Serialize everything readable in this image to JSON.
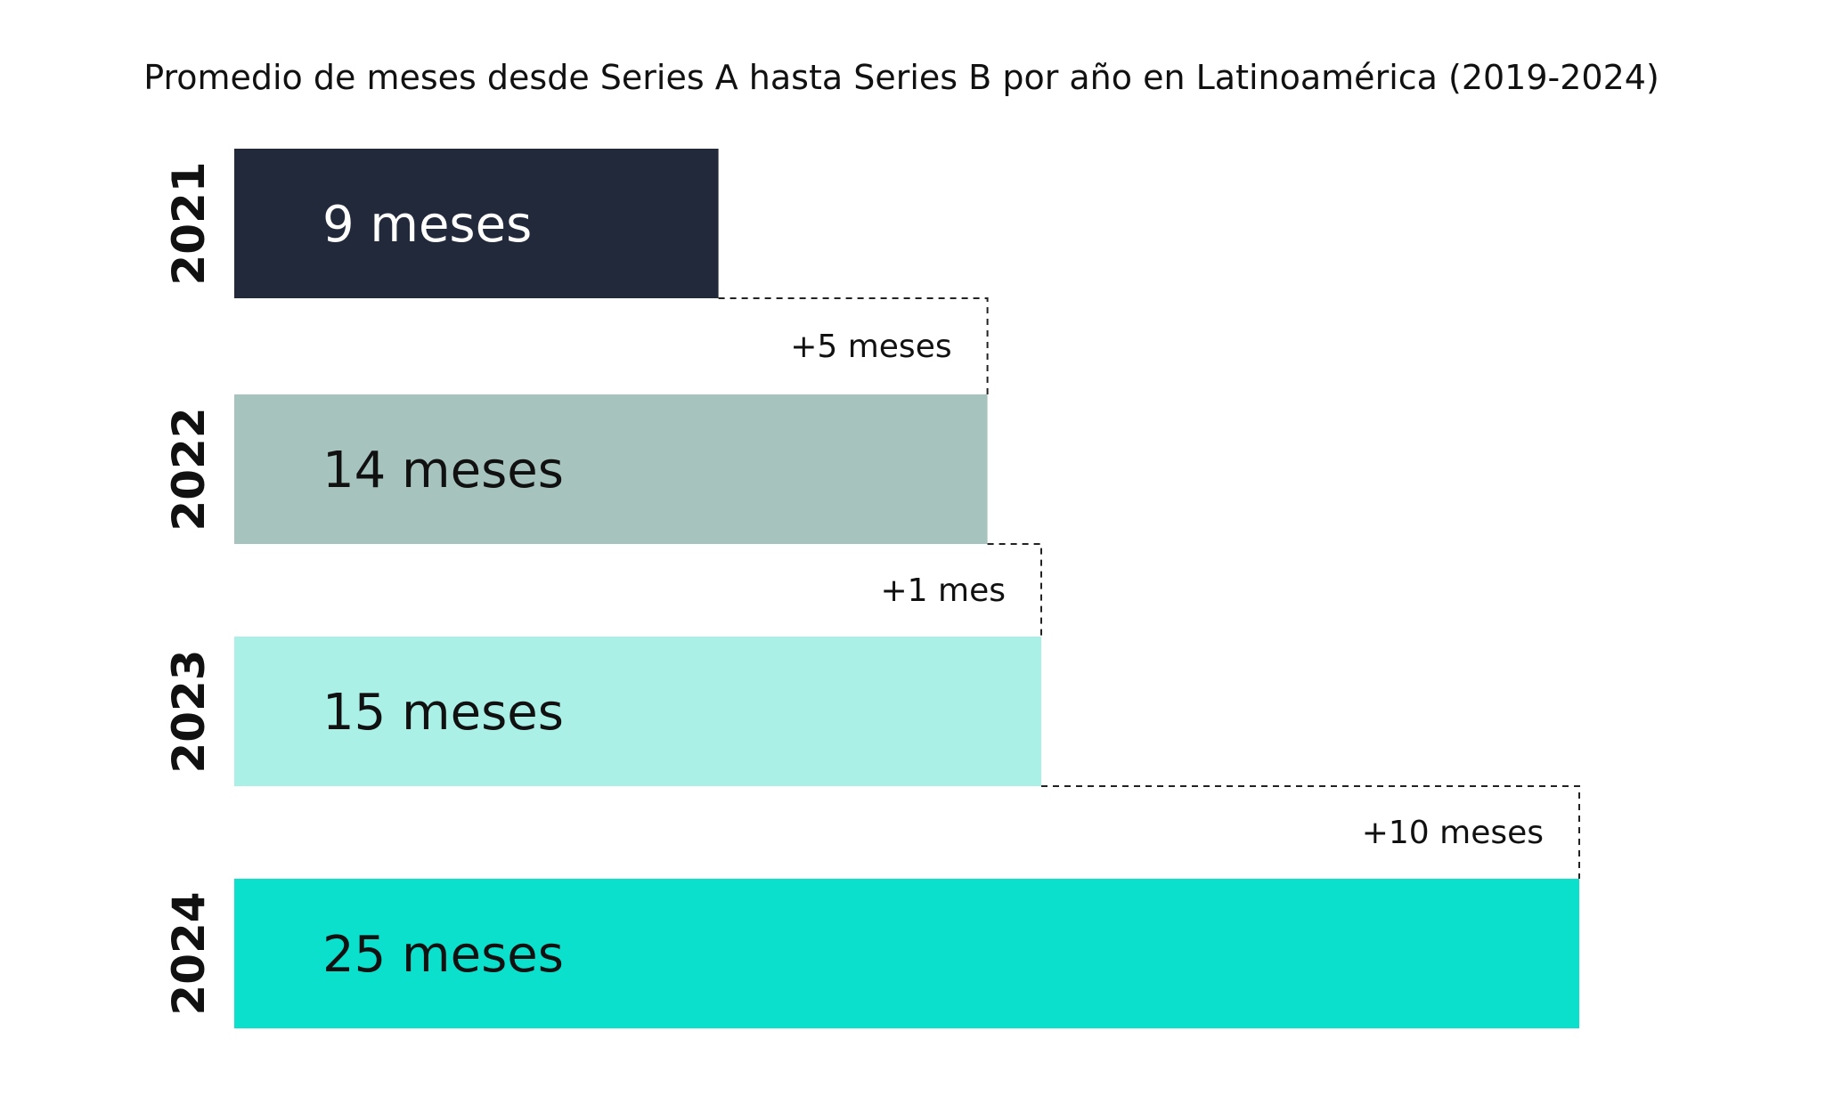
{
  "chart_data": {
    "type": "bar",
    "orientation": "horizontal",
    "title": "Promedio de meses desde Series A hasta Series B por año en Latinoamérica (2019-2024)",
    "categories": [
      "2021",
      "2022",
      "2023",
      "2024"
    ],
    "values": [
      9,
      14,
      15,
      25
    ],
    "value_labels": [
      "9 meses",
      "14 meses",
      "15 meses",
      "25 meses"
    ],
    "differences": [
      {
        "from": "2021",
        "to": "2022",
        "value": 5,
        "label": "+5 meses"
      },
      {
        "from": "2022",
        "to": "2023",
        "value": 1,
        "label": "+1 mes"
      },
      {
        "from": "2023",
        "to": "2024",
        "value": 10,
        "label": "+10 meses"
      }
    ],
    "xlim": [
      0,
      25
    ],
    "grid": false,
    "legend": "none",
    "colors": [
      "#22293a",
      "#a7c3bd",
      "#aaf0e6",
      "#0be0cc"
    ],
    "label_colors": [
      "#ffffff",
      "#111111",
      "#111111",
      "#111111"
    ]
  }
}
